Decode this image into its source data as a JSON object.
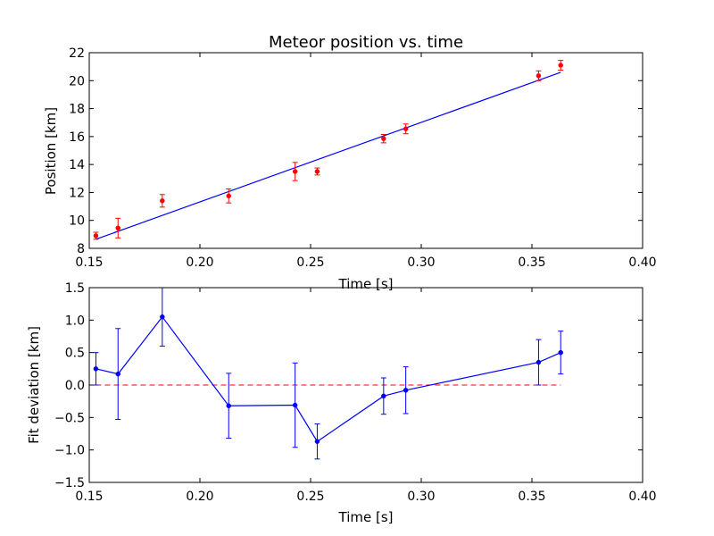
{
  "colors": {
    "measured": "#ff0000",
    "fit": "#0000ff",
    "deviation": "#0000ff",
    "zero_line": "#ff0000",
    "axes": "#000000"
  },
  "chart_data": [
    {
      "type": "scatter",
      "title": "Meteor position vs. time",
      "xlabel": "Time [s]",
      "ylabel": "Position [km]",
      "xlim": [
        0.15,
        0.4
      ],
      "ylim": [
        8,
        22
      ],
      "xticks": [
        "0.15",
        "0.20",
        "0.25",
        "0.30",
        "0.35",
        "0.40"
      ],
      "yticks": [
        "8",
        "10",
        "12",
        "14",
        "16",
        "18",
        "20",
        "22"
      ],
      "grid": false,
      "series": [
        {
          "kind": "points-with-error-bars",
          "x": [
            0.153,
            0.163,
            0.183,
            0.213,
            0.243,
            0.253,
            0.283,
            0.293,
            0.353,
            0.363
          ],
          "y": [
            8.9,
            9.45,
            11.4,
            11.75,
            13.5,
            13.5,
            15.85,
            16.55,
            20.35,
            21.1
          ],
          "yerr": [
            0.25,
            0.7,
            0.45,
            0.5,
            0.65,
            0.25,
            0.3,
            0.35,
            0.35,
            0.35
          ]
        },
        {
          "kind": "fit-line",
          "x": [
            0.153,
            0.363
          ],
          "y": [
            8.65,
            20.6
          ]
        }
      ]
    },
    {
      "type": "line",
      "xlabel": "Time [s]",
      "ylabel": "Fit deviation [km]",
      "xlim": [
        0.15,
        0.4
      ],
      "ylim": [
        -1.5,
        1.5
      ],
      "xticks": [
        "0.15",
        "0.20",
        "0.25",
        "0.30",
        "0.35",
        "0.40"
      ],
      "yticks": [
        "1.5",
        "1.0",
        "0.5",
        "0.0",
        "−0.5",
        "−1.0",
        "−1.5"
      ],
      "grid": false,
      "series": [
        {
          "kind": "deviation-with-error-bars",
          "x": [
            0.153,
            0.163,
            0.183,
            0.213,
            0.243,
            0.253,
            0.283,
            0.293,
            0.353,
            0.363
          ],
          "y": [
            0.25,
            0.17,
            1.05,
            -0.32,
            -0.31,
            -0.87,
            -0.17,
            -0.08,
            0.35,
            0.5
          ],
          "yerr": [
            0.25,
            0.7,
            0.45,
            0.5,
            0.65,
            0.27,
            0.28,
            0.36,
            0.35,
            0.33
          ]
        },
        {
          "kind": "zero-reference",
          "x": [
            0.153,
            0.363
          ],
          "y": [
            0,
            0
          ]
        }
      ]
    }
  ]
}
